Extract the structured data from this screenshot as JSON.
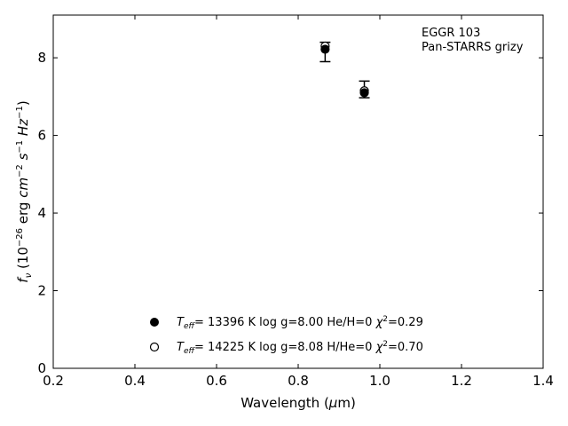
{
  "chart_data": {
    "type": "scatter",
    "xlabel_prefix": "Wavelength (",
    "xlabel_mu": "μ",
    "xlabel_suffix": "m)",
    "ylabel": {
      "f": "f",
      "nu": "ν",
      "rest1": " (10",
      "exp1": "−26",
      "rest2": " erg ",
      "cm": "cm",
      "exp2": "−2",
      "rest3": " ",
      "s": "s",
      "exp3": "−1",
      "rest4": " ",
      "hz": "Hz",
      "exp4": "−1",
      "rest5": ")"
    },
    "xlim": [
      0.2,
      1.4
    ],
    "ylim": [
      0,
      9.1
    ],
    "xticks": [
      0.2,
      0.4,
      0.6,
      0.8,
      1.0,
      1.2,
      1.4
    ],
    "xtick_labels": [
      "0.2",
      "0.4",
      "0.6",
      "0.8",
      "1.0",
      "1.2",
      "1.4"
    ],
    "yticks": [
      0,
      2,
      4,
      6,
      8
    ],
    "ytick_labels": [
      "0",
      "2",
      "4",
      "6",
      "8"
    ],
    "annotation": [
      "EGGR 103",
      "Pan-STARRS grizy"
    ],
    "observed": {
      "points": [
        {
          "x": 0.866,
          "y": 8.15,
          "ylo": 7.9,
          "yhi": 8.4
        },
        {
          "x": 0.962,
          "y": 7.18,
          "ylo": 6.97,
          "yhi": 7.4
        }
      ],
      "color": "#000000"
    },
    "series": [
      {
        "marker": "filled-circle",
        "points": [
          {
            "x": 0.866,
            "y": 8.22
          },
          {
            "x": 0.962,
            "y": 7.1
          }
        ],
        "label_T": "T",
        "label_sub": "eff",
        "label_rest": "= 13396 K  log g=8.00  He/H=0  ",
        "label_chi": "χ",
        "label_sup": "2",
        "label_end": "=0.29"
      },
      {
        "marker": "open-circle",
        "points": [
          {
            "x": 0.866,
            "y": 8.3
          },
          {
            "x": 0.962,
            "y": 7.15
          }
        ],
        "label_T": "T",
        "label_sub": "eff",
        "label_rest": "= 14225 K  log g=8.08  H/He=0  ",
        "label_chi": "χ",
        "label_sup": "2",
        "label_end": "=0.70"
      }
    ],
    "grid": false,
    "legend_position": "bottom-center"
  }
}
